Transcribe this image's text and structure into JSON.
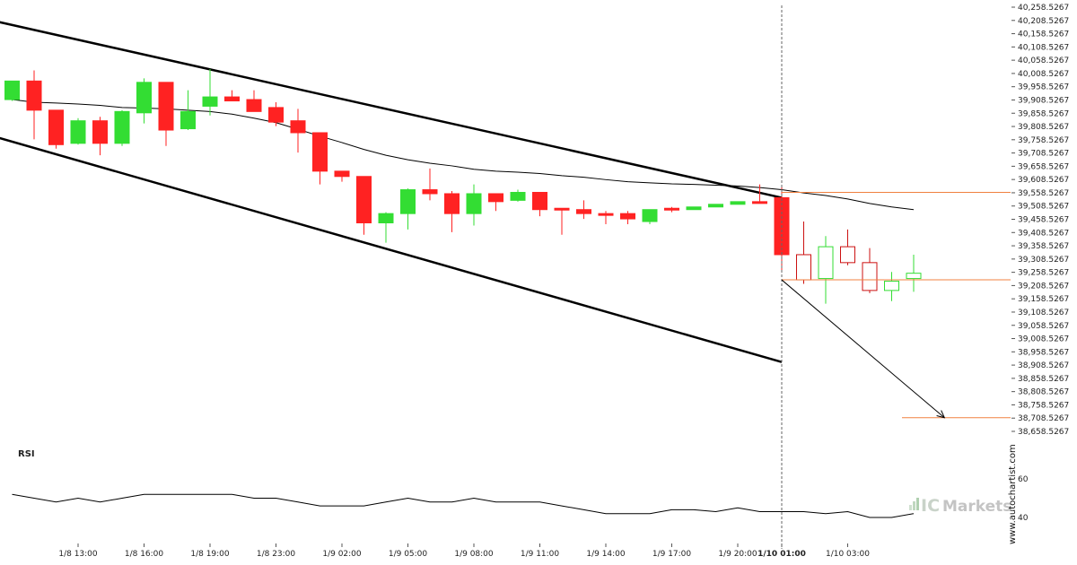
{
  "chart_data": [
    {
      "type": "candlestick",
      "colors": {
        "up": "#33dd33",
        "down": "#ff2222",
        "up_hollow": "#33dd33",
        "down_hollow": "#cc1111"
      },
      "x_tick_labels": [
        "1/8 13:00",
        "1/8 16:00",
        "1/8 19:00",
        "1/8 23:00",
        "1/9 02:00",
        "1/9 05:00",
        "1/9 08:00",
        "1/9 11:00",
        "1/9 14:00",
        "1/9 17:00",
        "1/9 20:00",
        "1/10 01:00",
        "1/10 03:00"
      ],
      "y_tick_labels": [
        "40,258.5267",
        "40,208.5267",
        "40,158.5267",
        "40,108.5267",
        "40,058.5267",
        "40,008.5267",
        "39,958.5267",
        "39,908.5267",
        "39,858.5267",
        "39,808.5267",
        "39,758.5267",
        "39,708.5267",
        "39,658.5267",
        "39,608.5267",
        "39,558.5267",
        "39,508.5267",
        "39,458.5267",
        "39,408.5267",
        "39,358.5267",
        "39,308.5267",
        "39,258.5267",
        "39,208.5267",
        "39,158.5267",
        "39,108.5267",
        "39,058.5267",
        "39,008.5267",
        "38,958.5267",
        "38,908.5267",
        "38,858.5267",
        "38,808.5267",
        "38,758.5267",
        "38,708.5267",
        "38,658.5267"
      ],
      "ylim": [
        38640,
        40260
      ],
      "candles": [
        {
          "o": 39910,
          "h": 39980,
          "l": 39905,
          "c": 39980
        },
        {
          "o": 39980,
          "h": 40020,
          "l": 39760,
          "c": 39870
        },
        {
          "o": 39870,
          "h": 39870,
          "l": 39725,
          "c": 39740
        },
        {
          "o": 39745,
          "h": 39840,
          "l": 39740,
          "c": 39830
        },
        {
          "o": 39830,
          "h": 39845,
          "l": 39700,
          "c": 39745
        },
        {
          "o": 39745,
          "h": 39870,
          "l": 39735,
          "c": 39865
        },
        {
          "o": 39860,
          "h": 39990,
          "l": 39820,
          "c": 39975
        },
        {
          "o": 39975,
          "h": 39975,
          "l": 39735,
          "c": 39795
        },
        {
          "o": 39800,
          "h": 39945,
          "l": 39795,
          "c": 39865
        },
        {
          "o": 39885,
          "h": 40025,
          "l": 39850,
          "c": 39920
        },
        {
          "o": 39920,
          "h": 39945,
          "l": 39905,
          "c": 39905
        },
        {
          "o": 39910,
          "h": 39945,
          "l": 39870,
          "c": 39865
        },
        {
          "o": 39880,
          "h": 39900,
          "l": 39810,
          "c": 39825
        },
        {
          "o": 39830,
          "h": 39875,
          "l": 39710,
          "c": 39785
        },
        {
          "o": 39785,
          "h": 39785,
          "l": 39590,
          "c": 39640
        },
        {
          "o": 39640,
          "h": 39640,
          "l": 39600,
          "c": 39620
        },
        {
          "o": 39620,
          "h": 39620,
          "l": 39400,
          "c": 39445
        },
        {
          "o": 39445,
          "h": 39485,
          "l": 39370,
          "c": 39480
        },
        {
          "o": 39480,
          "h": 39575,
          "l": 39420,
          "c": 39570
        },
        {
          "o": 39570,
          "h": 39650,
          "l": 39530,
          "c": 39555
        },
        {
          "o": 39555,
          "h": 39565,
          "l": 39410,
          "c": 39480
        },
        {
          "o": 39480,
          "h": 39590,
          "l": 39435,
          "c": 39555
        },
        {
          "o": 39555,
          "h": 39555,
          "l": 39490,
          "c": 39525
        },
        {
          "o": 39530,
          "h": 39570,
          "l": 39525,
          "c": 39560
        },
        {
          "o": 39560,
          "h": 39560,
          "l": 39470,
          "c": 39495
        },
        {
          "o": 39500,
          "h": 39500,
          "l": 39400,
          "c": 39495
        },
        {
          "o": 39495,
          "h": 39530,
          "l": 39460,
          "c": 39480
        },
        {
          "o": 39480,
          "h": 39490,
          "l": 39440,
          "c": 39475
        },
        {
          "o": 39480,
          "h": 39490,
          "l": 39440,
          "c": 39460
        },
        {
          "o": 39450,
          "h": 39495,
          "l": 39440,
          "c": 39495
        },
        {
          "o": 39500,
          "h": 39505,
          "l": 39485,
          "c": 39495
        },
        {
          "o": 39495,
          "h": 39505,
          "l": 39495,
          "c": 39505
        },
        {
          "o": 39505,
          "h": 39515,
          "l": 39505,
          "c": 39515
        },
        {
          "o": 39515,
          "h": 39525,
          "l": 39515,
          "c": 39525
        },
        {
          "o": 39525,
          "h": 39590,
          "l": 39520,
          "c": 39520
        },
        {
          "o": 39540,
          "h": 39580,
          "l": 39260,
          "c": 39325
        },
        {
          "o": 39325,
          "h": 39450,
          "l": 39215,
          "c": 39230
        },
        {
          "o": 39235,
          "h": 39395,
          "l": 39140,
          "c": 39355
        },
        {
          "o": 39355,
          "h": 39420,
          "l": 39285,
          "c": 39295
        },
        {
          "o": 39295,
          "h": 39350,
          "l": 39180,
          "c": 39190
        },
        {
          "o": 39190,
          "h": 39260,
          "l": 39150,
          "c": 39225
        },
        {
          "o": 39235,
          "h": 39325,
          "l": 39185,
          "c": 39255
        }
      ],
      "hollow_from_index": 36,
      "moving_average": [
        39910,
        39900,
        39897,
        39893,
        39888,
        39880,
        39878,
        39875,
        39870,
        39865,
        39855,
        39840,
        39823,
        39798,
        39772,
        39748,
        39722,
        39700,
        39683,
        39670,
        39660,
        39647,
        39640,
        39636,
        39631,
        39623,
        39617,
        39608,
        39600,
        39596,
        39592,
        39590,
        39587,
        39584,
        39578,
        39570,
        39558,
        39548,
        39535,
        39518,
        39505,
        39495
      ],
      "channel": {
        "upper": {
          "start": {
            "i": -1,
            "y": 40210
          },
          "end": {
            "i": 35,
            "y": 39540
          }
        },
        "lower": {
          "start": {
            "i": -1,
            "y": 39775
          },
          "end": {
            "i": 35,
            "y": 38920
          }
        }
      },
      "resistance_level": 39560,
      "support_level": 39230,
      "target_level": 38710,
      "breakout_index": 35,
      "projection": {
        "from": {
          "i": 35,
          "y": 39230
        },
        "to": {
          "i": 42.4,
          "y": 38710
        }
      },
      "line_colors": {
        "channel": "#000000",
        "ma": "#000000",
        "level": "#f08040",
        "projection": "#000000",
        "vline": "#666666"
      }
    },
    {
      "type": "line",
      "title": "RSI",
      "y_tick_labels": [
        "60",
        "40"
      ],
      "ylim": [
        36,
        64
      ],
      "values": [
        52,
        50,
        48,
        50,
        48,
        50,
        52,
        52,
        52,
        52,
        52,
        50,
        50,
        48,
        46,
        46,
        46,
        48,
        50,
        48,
        48,
        50,
        48,
        48,
        48,
        46,
        44,
        42,
        42,
        42,
        44,
        44,
        43,
        45,
        43,
        43,
        43,
        42,
        43,
        40,
        40,
        42
      ]
    }
  ],
  "branding": {
    "credit": "www.autochartist.com",
    "logo_ic": "IC",
    "logo_rest": "Markets"
  }
}
